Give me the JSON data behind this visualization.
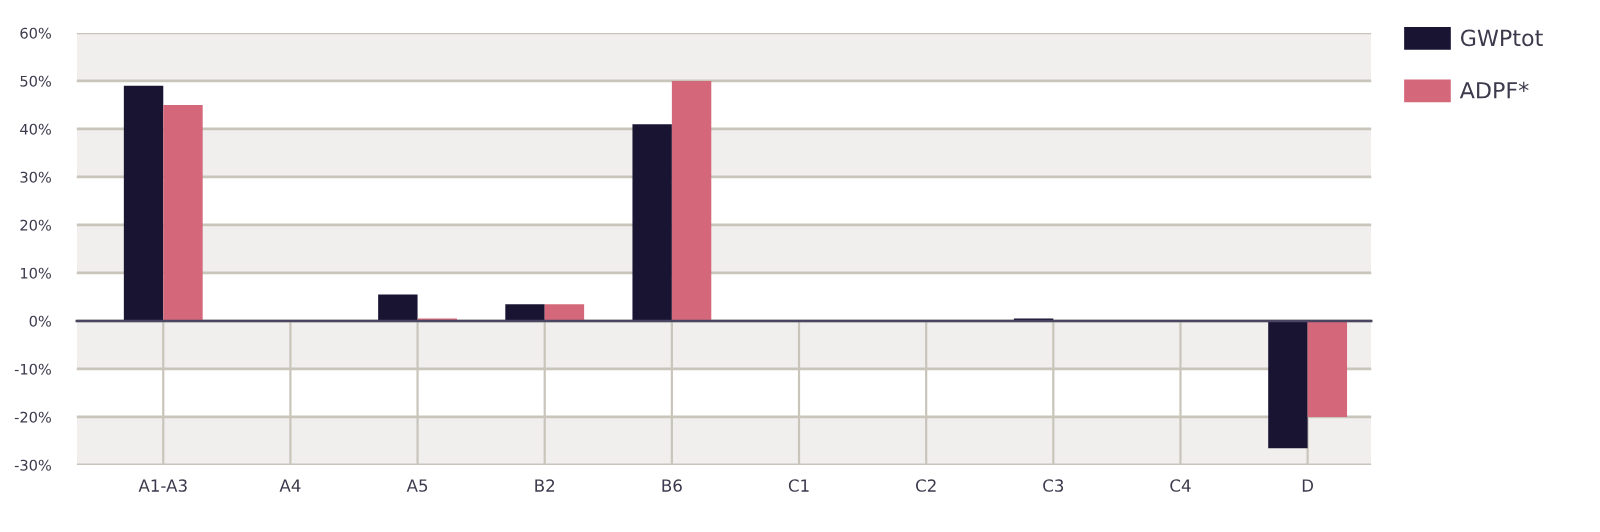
{
  "chart_data": {
    "type": "bar",
    "categories": [
      "A1-A3",
      "A4",
      "A5",
      "B2",
      "B6",
      "C1",
      "C2",
      "C3",
      "C4",
      "D"
    ],
    "series": [
      {
        "name": "GWPtot",
        "color": "#1a1433",
        "values": [
          49,
          0,
          5.5,
          3.5,
          41,
          0,
          0,
          0.5,
          0,
          -26.5
        ]
      },
      {
        "name": "ADPF*",
        "color": "#d4687a",
        "values": [
          45,
          0,
          0.5,
          3.5,
          50,
          0,
          0,
          0,
          0,
          -20
        ]
      }
    ],
    "ylim": [
      -30,
      60
    ],
    "yticks": [
      {
        "value": -30,
        "label": "-30%"
      },
      {
        "value": -20,
        "label": "-20%"
      },
      {
        "value": -10,
        "label": "-10%"
      },
      {
        "value": 0,
        "label": "0%"
      },
      {
        "value": 10,
        "label": "10%"
      },
      {
        "value": 20,
        "label": "20%"
      },
      {
        "value": 30,
        "label": "30%"
      },
      {
        "value": 40,
        "label": "40%"
      },
      {
        "value": 50,
        "label": "50%"
      },
      {
        "value": 60,
        "label": "60%"
      }
    ],
    "grid": true,
    "legend": "top right"
  }
}
